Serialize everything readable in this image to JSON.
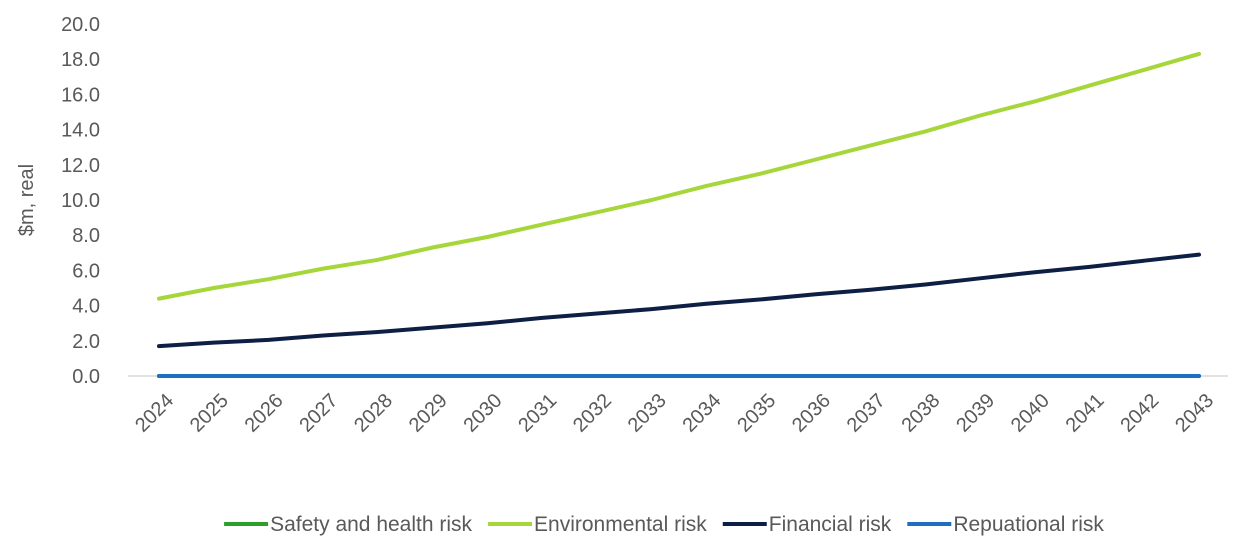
{
  "chart_data": {
    "type": "line",
    "title": "",
    "xlabel": "",
    "ylabel": "$m, real",
    "ylim": [
      0,
      20
    ],
    "ytick_step": 2,
    "ytick_labels": [
      "0.0",
      "2.0",
      "4.0",
      "6.0",
      "8.0",
      "10.0",
      "12.0",
      "14.0",
      "16.0",
      "18.0",
      "20.0"
    ],
    "grid": false,
    "legend_position": "bottom",
    "x": [
      "2024",
      "2025",
      "2026",
      "2027",
      "2028",
      "2029",
      "2030",
      "2031",
      "2032",
      "2033",
      "2034",
      "2035",
      "2036",
      "2037",
      "2038",
      "2039",
      "2040",
      "2041",
      "2042",
      "2043"
    ],
    "series": [
      {
        "name": "Safety and health risk",
        "color": "#2ca02c",
        "values": [
          0,
          0,
          0,
          0,
          0,
          0,
          0,
          0,
          0,
          0,
          0,
          0,
          0,
          0,
          0,
          0,
          0,
          0,
          0,
          0
        ]
      },
      {
        "name": "Environmental risk",
        "color": "#a6d63a",
        "values": [
          4.4,
          5.0,
          5.5,
          6.1,
          6.6,
          7.3,
          7.9,
          8.6,
          9.3,
          10.0,
          10.8,
          11.5,
          12.3,
          13.1,
          13.9,
          14.8,
          15.6,
          16.5,
          17.4,
          18.3
        ]
      },
      {
        "name": "Financial risk",
        "color": "#0d1f45",
        "values": [
          1.7,
          1.9,
          2.05,
          2.3,
          2.5,
          2.75,
          3.0,
          3.3,
          3.55,
          3.8,
          4.1,
          4.35,
          4.65,
          4.9,
          5.2,
          5.55,
          5.9,
          6.2,
          6.55,
          6.9
        ]
      },
      {
        "name": "Repuational risk",
        "color": "#1f6fc1",
        "values": [
          0,
          0,
          0,
          0,
          0,
          0,
          0,
          0,
          0,
          0,
          0,
          0,
          0,
          0,
          0,
          0,
          0,
          0,
          0,
          0
        ]
      }
    ]
  }
}
